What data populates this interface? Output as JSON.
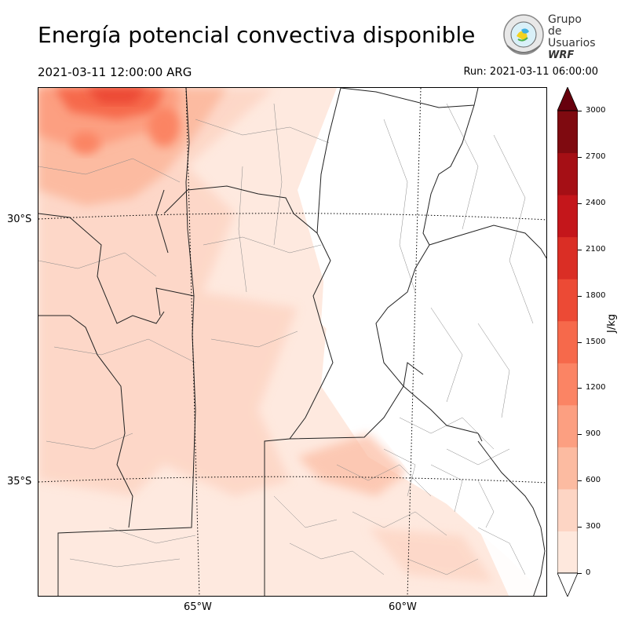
{
  "title": "Energía potencial convectiva disponible",
  "valid_time": "2021-03-11 12:00:00 ARG",
  "run_time": "Run: 2021-03-11 06:00:00",
  "logo": {
    "line1": "Grupo de",
    "line2": "Usuarios",
    "line3": "WRF"
  },
  "map": {
    "lat_labels": [
      "30°S",
      "35°S"
    ],
    "lon_labels": [
      "65°W",
      "60°W"
    ],
    "field": "CAPE",
    "max_region": "northwest corner"
  },
  "colorbar": {
    "unit": "J/kg",
    "ticks": [
      "3000",
      "2700",
      "2400",
      "2100",
      "1800",
      "1500",
      "1200",
      "900",
      "600",
      "300",
      "0"
    ],
    "colors": [
      "#fee8dd",
      "#fdd5c4",
      "#fcbba1",
      "#fc9f81",
      "#fb8464",
      "#f6694b",
      "#ec4a35",
      "#da2e25",
      "#c4161b",
      "#a50f15",
      "#7f0a10"
    ],
    "extend_color_top": "#67000d",
    "extend_color_bottom": "#ffffff"
  }
}
